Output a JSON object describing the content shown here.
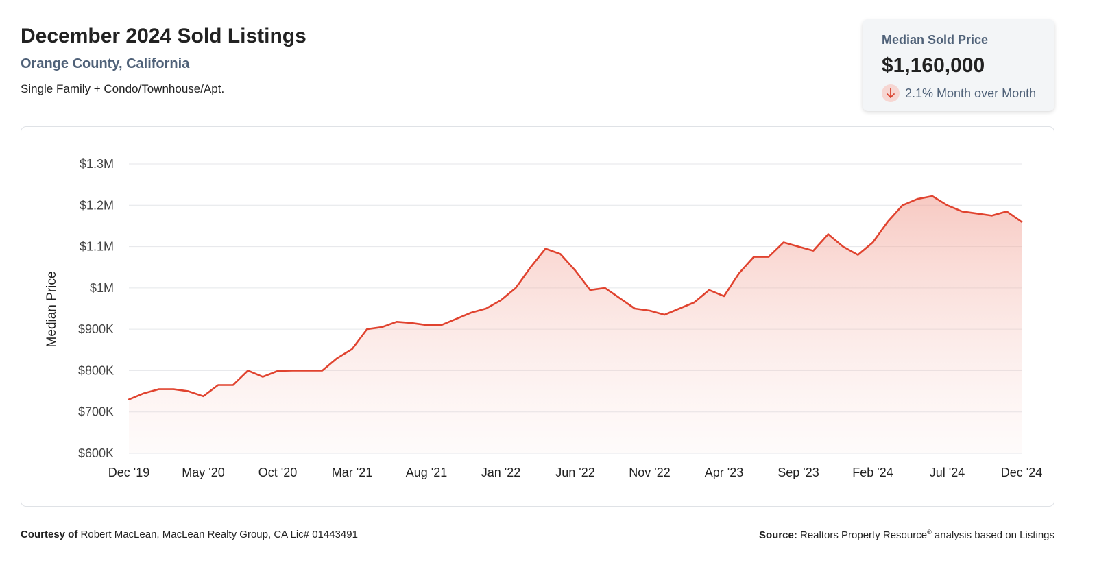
{
  "header": {
    "title": "December 2024 Sold Listings",
    "subtitle": "Orange County, California",
    "property_types": "Single Family + Condo/Townhouse/Apt."
  },
  "summary_card": {
    "label": "Median Sold Price",
    "value": "$1,160,000",
    "change": "2.1% Month over Month",
    "direction": "down",
    "icon": "arrow-down-icon"
  },
  "colors": {
    "line": "#e0432f",
    "fill": "#f4b8ae",
    "grid": "#e4e6e9",
    "accent_text": "#4f6178"
  },
  "chart_data": {
    "type": "area",
    "ylabel": "Median Price",
    "xlabel": "",
    "ylim": [
      600000,
      1300000
    ],
    "yticks": [
      600000,
      700000,
      800000,
      900000,
      1000000,
      1100000,
      1200000,
      1300000
    ],
    "ytick_labels": [
      "$600K",
      "$700K",
      "$800K",
      "$900K",
      "$1M",
      "$1.1M",
      "$1.2M",
      "$1.3M"
    ],
    "xtick_labels": [
      "Dec '19",
      "May '20",
      "Oct '20",
      "Mar '21",
      "Aug '21",
      "Jan '22",
      "Jun '22",
      "Nov '22",
      "Apr '23",
      "Sep '23",
      "Feb '24",
      "Jul '24",
      "Dec '24"
    ],
    "xtick_indices": [
      0,
      5,
      10,
      15,
      20,
      25,
      30,
      35,
      40,
      45,
      50,
      55,
      60
    ],
    "grid": true,
    "x": [
      "Dec '19",
      "Jan '20",
      "Feb '20",
      "Mar '20",
      "Apr '20",
      "May '20",
      "Jun '20",
      "Jul '20",
      "Aug '20",
      "Sep '20",
      "Oct '20",
      "Nov '20",
      "Dec '20",
      "Jan '21",
      "Feb '21",
      "Mar '21",
      "Apr '21",
      "May '21",
      "Jun '21",
      "Jul '21",
      "Aug '21",
      "Sep '21",
      "Oct '21",
      "Nov '21",
      "Dec '21",
      "Jan '22",
      "Feb '22",
      "Mar '22",
      "Apr '22",
      "May '22",
      "Jun '22",
      "Jul '22",
      "Aug '22",
      "Sep '22",
      "Oct '22",
      "Nov '22",
      "Dec '22",
      "Jan '23",
      "Feb '23",
      "Mar '23",
      "Apr '23",
      "May '23",
      "Jun '23",
      "Jul '23",
      "Aug '23",
      "Sep '23",
      "Oct '23",
      "Nov '23",
      "Dec '23",
      "Jan '24",
      "Feb '24",
      "Mar '24",
      "Apr '24",
      "May '24",
      "Jun '24",
      "Jul '24",
      "Aug '24",
      "Sep '24",
      "Oct '24",
      "Nov '24",
      "Dec '24"
    ],
    "series": [
      {
        "values": [
          730000,
          745000,
          755000,
          755000,
          750000,
          738000,
          765000,
          765000,
          800000,
          785000,
          799000,
          800000,
          800000,
          800000,
          830000,
          852000,
          900000,
          905000,
          918000,
          915000,
          910000,
          910000,
          925000,
          940000,
          950000,
          970000,
          1000000,
          1050000,
          1095000,
          1082000,
          1042000,
          995000,
          1000000,
          975000,
          950000,
          945000,
          935000,
          950000,
          965000,
          995000,
          980000,
          1035000,
          1075000,
          1075000,
          1110000,
          1100000,
          1090000,
          1130000,
          1100000,
          1080000,
          1110000,
          1160000,
          1200000,
          1215000,
          1222000,
          1200000,
          1185000,
          1180000,
          1175000,
          1185000,
          1160000
        ]
      }
    ]
  },
  "footer": {
    "courtesy_label": "Courtesy of",
    "courtesy_text": "Robert MacLean, MacLean Realty Group, CA Lic# 01443491",
    "source_label": "Source:",
    "source_text": "Realtors Property Resource",
    "source_mark": "®",
    "source_suffix": "analysis based on Listings"
  }
}
